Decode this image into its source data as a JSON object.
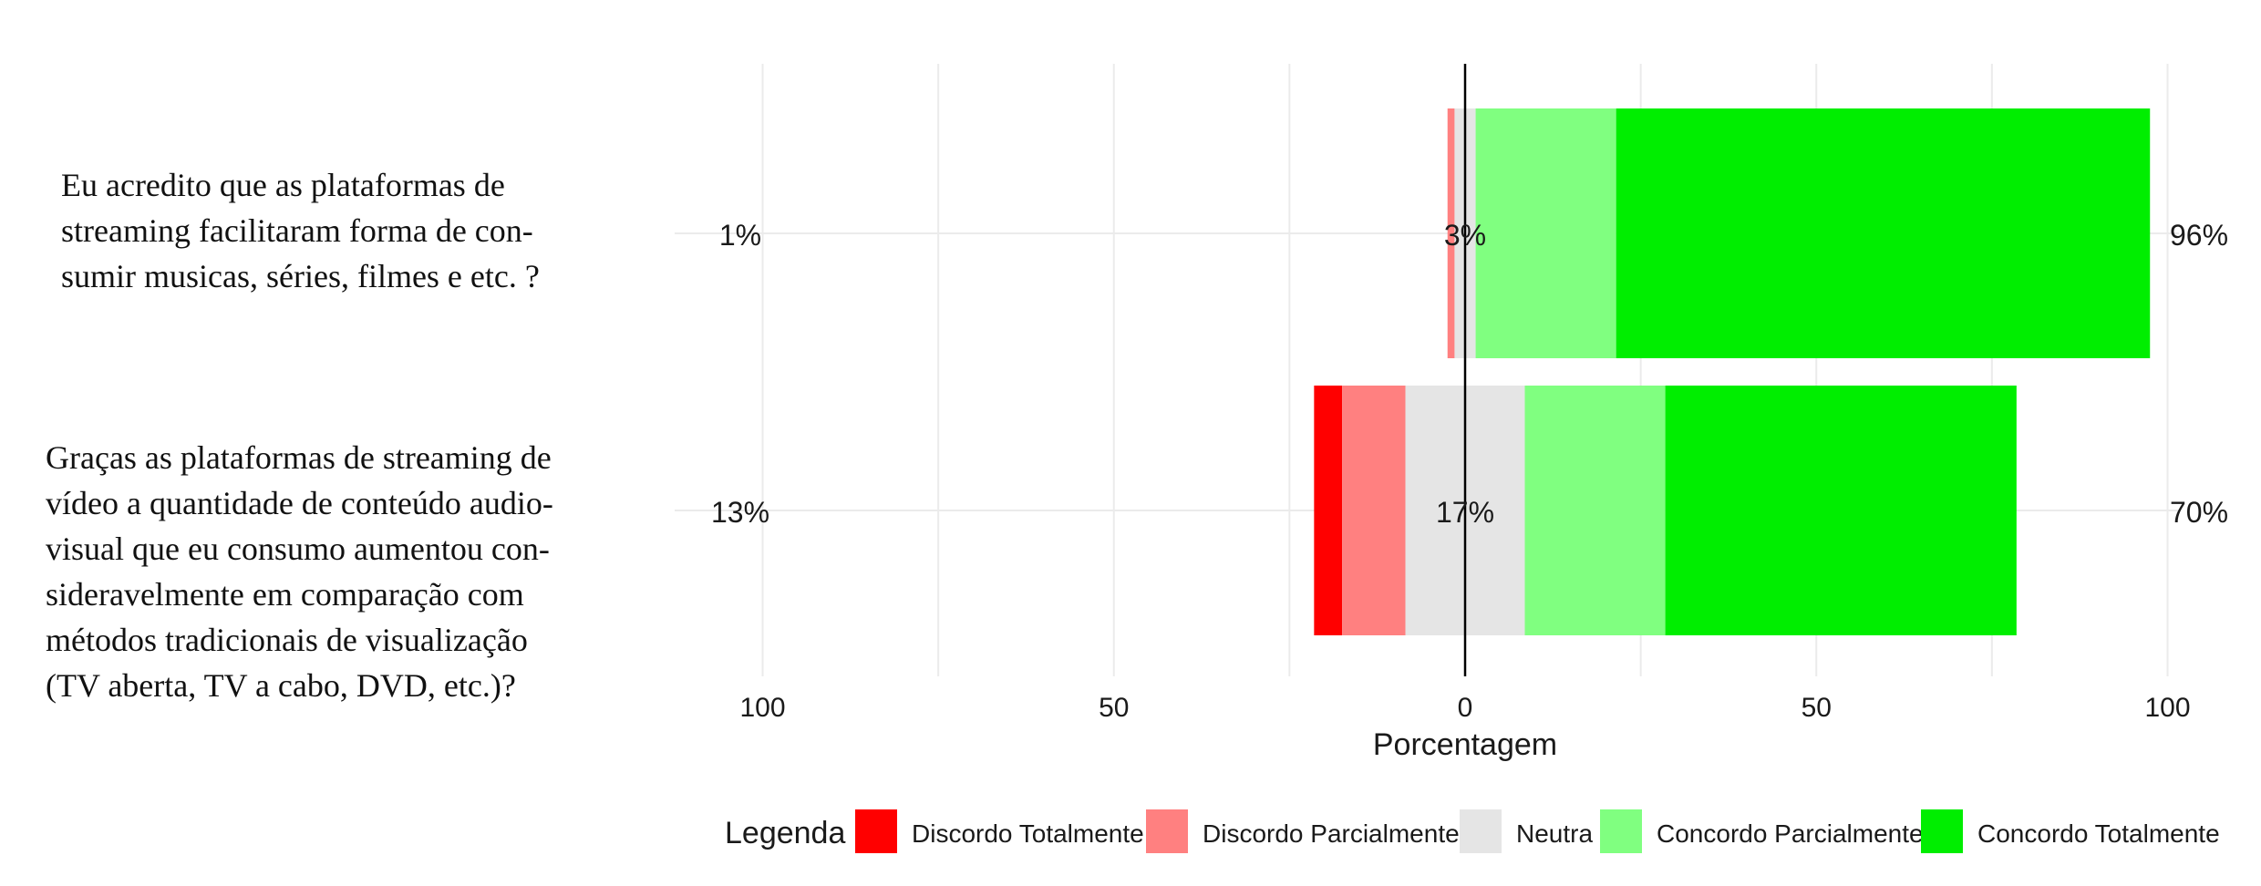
{
  "chart_data": {
    "type": "bar",
    "orientation": "horizontal",
    "stacked": "diverging",
    "xlabel": "Porcentagem",
    "xlim": [
      -100,
      100
    ],
    "xticks": [
      -100,
      -50,
      0,
      50,
      100
    ],
    "xtick_labels": [
      "100",
      "50",
      "0",
      "50",
      "100"
    ],
    "grid": true,
    "legend": {
      "title": "Legenda",
      "position": "bottom"
    },
    "categories": [
      "Eu acredito que as plataformas de\nstreaming facilitaram  forma de con-\nsumir musicas, séries, filmes e etc. ?",
      "Graças as plataformas de streaming de\nvídeo a quantidade de conteúdo audio-\nvisual que eu consumo aumentou con-\nsideravelmente em comparação com\nmétodos tradicionais de visualização\n(TV aberta, TV a cabo, DVD, etc.)?"
    ],
    "series": [
      {
        "name": "Discordo Totalmente",
        "color": "#FF0000",
        "values": [
          0,
          4
        ]
      },
      {
        "name": "Discordo Parcialmente",
        "color": "#FF8080",
        "values": [
          1,
          9
        ]
      },
      {
        "name": "Neutra",
        "color": "#E5E5E5",
        "values": [
          3,
          17
        ]
      },
      {
        "name": "Concordo Parcialmente",
        "color": "#80FF80",
        "values": [
          20,
          20
        ]
      },
      {
        "name": "Concordo Totalmente",
        "color": "#00EE00",
        "values": [
          76,
          50
        ]
      }
    ],
    "left_labels": [
      "1%",
      "13%"
    ],
    "center_labels": [
      "3%",
      "17%"
    ],
    "right_labels": [
      "96%",
      "70%"
    ]
  }
}
